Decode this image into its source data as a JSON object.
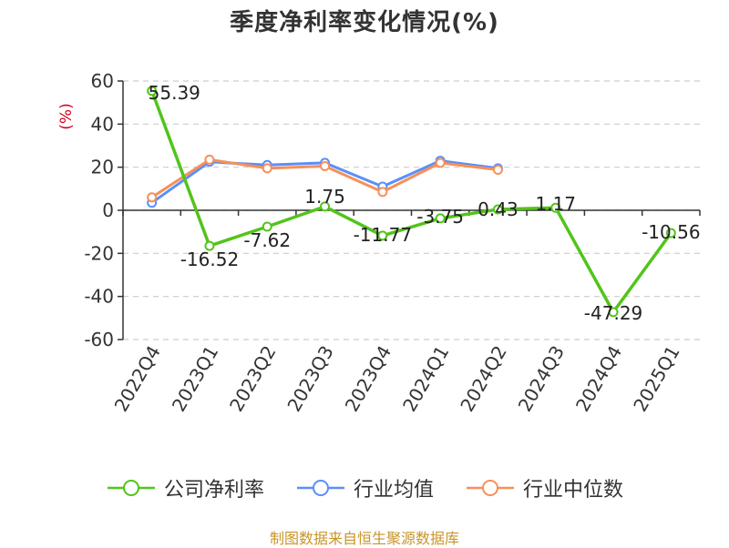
{
  "chart_data": {
    "type": "line",
    "title": "季度净利率变化情况(%)",
    "ylabel": "(%)",
    "categories": [
      "2022Q4",
      "2023Q1",
      "2023Q2",
      "2023Q3",
      "2023Q4",
      "2024Q1",
      "2024Q2",
      "2024Q3",
      "2024Q4",
      "2025Q1"
    ],
    "ylim": [
      -60,
      60
    ],
    "yticks": [
      60,
      40,
      20,
      0,
      -20,
      -40,
      -60
    ],
    "grid": true,
    "legend_position": "bottom",
    "series": [
      {
        "name": "公司净利率",
        "color": "#52c41a",
        "values": [
          55.39,
          -16.52,
          -7.62,
          1.75,
          -11.77,
          -3.75,
          0.43,
          1.17,
          -47.29,
          -10.56
        ],
        "labels": [
          "55.39",
          "-16.52",
          "-7.62",
          "1.75",
          "-11.77",
          "-3.75",
          "0.43",
          "1.17",
          "-47.29",
          "-10.56"
        ]
      },
      {
        "name": "行业均值",
        "color": "#5b8ff9",
        "values": [
          3.5,
          22.5,
          21.0,
          22.0,
          11.0,
          23.0,
          19.5,
          null,
          null,
          null
        ]
      },
      {
        "name": "行业中位数",
        "color": "#f6905a",
        "values": [
          6.0,
          23.5,
          19.5,
          20.5,
          8.5,
          22.0,
          18.8,
          null,
          null,
          null
        ]
      }
    ]
  },
  "source_text": "制图数据来自恒生聚源数据库"
}
